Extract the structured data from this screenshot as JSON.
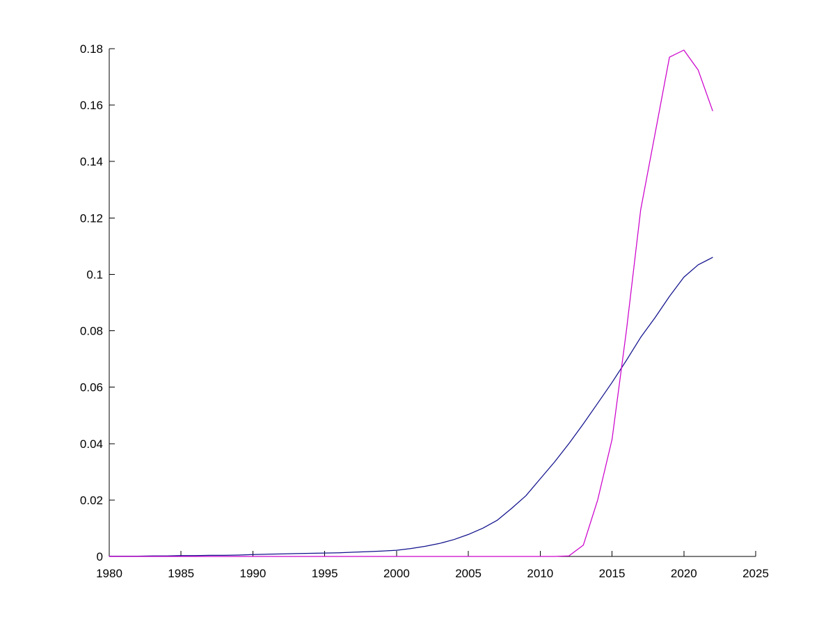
{
  "chart_data": {
    "type": "line",
    "title": "",
    "xlabel": "",
    "ylabel": "",
    "grid": false,
    "legend": "none",
    "background_color": "#ffffff",
    "axis_color": "#000000",
    "xlim": [
      1980,
      2025
    ],
    "ylim": [
      0,
      0.18
    ],
    "x_ticks": [
      1980,
      1985,
      1990,
      1995,
      2000,
      2005,
      2010,
      2015,
      2020,
      2025
    ],
    "x_tick_labels": [
      "1980",
      "1985",
      "1990",
      "1995",
      "2000",
      "2005",
      "2010",
      "2015",
      "2020",
      "2025"
    ],
    "y_ticks": [
      0,
      0.02,
      0.04,
      0.06,
      0.08,
      0.1,
      0.12,
      0.14,
      0.16,
      0.18
    ],
    "y_tick_labels": [
      "0",
      "0.02",
      "0.04",
      "0.06",
      "0.08",
      "0.1",
      "0.12",
      "0.14",
      "0.16",
      "0.18"
    ],
    "x": [
      1980,
      1981,
      1982,
      1983,
      1984,
      1985,
      1986,
      1987,
      1988,
      1989,
      1990,
      1991,
      1992,
      1993,
      1994,
      1995,
      1996,
      1997,
      1998,
      1999,
      2000,
      2001,
      2002,
      2003,
      2004,
      2005,
      2006,
      2007,
      2008,
      2009,
      2010,
      2011,
      2012,
      2013,
      2014,
      2015,
      2016,
      2017,
      2018,
      2019,
      2020,
      2021,
      2022
    ],
    "series": [
      {
        "name": "dark-blue",
        "color": "#10108C",
        "values": [
          0.0001,
          0.0001,
          0.0001,
          0.0002,
          0.0002,
          0.0003,
          0.0003,
          0.0004,
          0.0004,
          0.0005,
          0.0007,
          0.0008,
          0.0009,
          0.001,
          0.0011,
          0.0012,
          0.0013,
          0.0015,
          0.0017,
          0.0019,
          0.0022,
          0.0028,
          0.0036,
          0.0046,
          0.006,
          0.0078,
          0.01,
          0.0128,
          0.017,
          0.0215,
          0.0275,
          0.0335,
          0.04,
          0.047,
          0.0543,
          0.0617,
          0.0695,
          0.0777,
          0.0847,
          0.0922,
          0.099,
          0.1034,
          0.106
        ]
      },
      {
        "name": "magenta",
        "color": "#CC00CC",
        "values": [
          0,
          0,
          0,
          0,
          0,
          0,
          0,
          0,
          0,
          0,
          0,
          0,
          0,
          0,
          0,
          0,
          0,
          0,
          0,
          0,
          0,
          0,
          0,
          0,
          0,
          0,
          0,
          0,
          0,
          0,
          0,
          0,
          0.0002,
          0.004,
          0.02,
          0.0415,
          0.08,
          0.123,
          0.15,
          0.177,
          0.1795,
          0.1724,
          0.158
        ]
      }
    ]
  }
}
